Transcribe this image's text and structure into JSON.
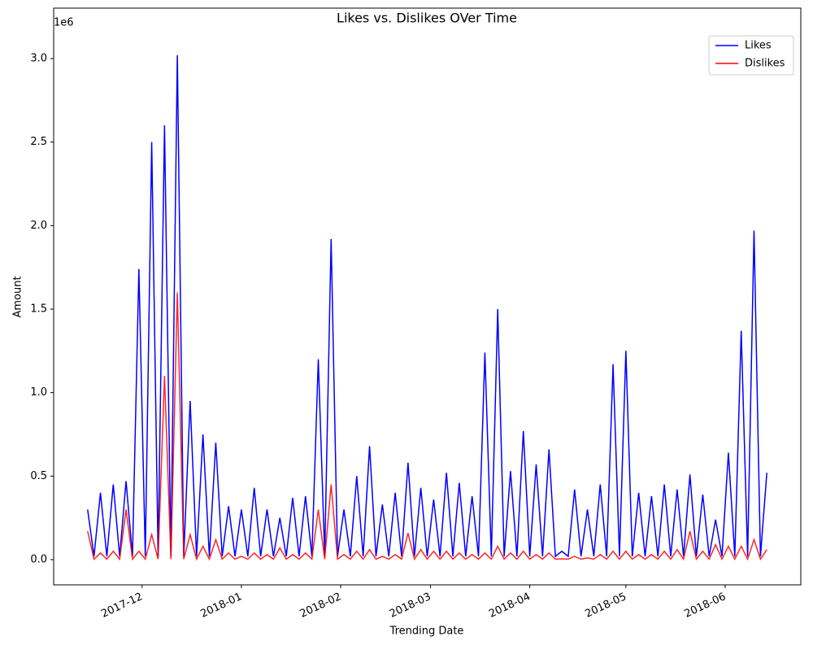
{
  "chart_data": {
    "type": "line",
    "title": "Likes vs. Dislikes OVer Time",
    "x_label": "Trending Date",
    "y_label": "Amount",
    "y_offset_label": "1e6",
    "legend": "upper right",
    "x": [
      17484,
      17486,
      17488,
      17490,
      17492,
      17494,
      17496,
      17498,
      17500,
      17502,
      17504,
      17506,
      17508,
      17510,
      17512,
      17514,
      17516,
      17518,
      17520,
      17522,
      17524,
      17526,
      17528,
      17530,
      17532,
      17534,
      17536,
      17538,
      17540,
      17542,
      17544,
      17546,
      17548,
      17550,
      17552,
      17554,
      17556,
      17558,
      17560,
      17562,
      17564,
      17566,
      17568,
      17570,
      17572,
      17574,
      17576,
      17578,
      17580,
      17582,
      17584,
      17586,
      17588,
      17590,
      17592,
      17594,
      17596,
      17598,
      17600,
      17602,
      17604,
      17606,
      17608,
      17610,
      17612,
      17614,
      17616,
      17618,
      17620,
      17622,
      17624,
      17626,
      17628,
      17630,
      17632,
      17634,
      17636,
      17638,
      17640,
      17642,
      17644,
      17646,
      17648,
      17650,
      17652,
      17654,
      17656,
      17658,
      17660,
      17662,
      17664,
      17666,
      17668,
      17670,
      17672,
      17674,
      17676,
      17678,
      17680,
      17682,
      17684,
      17686,
      17688,
      17690,
      17692,
      17694,
      17696
    ],
    "series": [
      {
        "name": "Likes",
        "color": "#0000ff",
        "values": [
          300000,
          20000,
          400000,
          20000,
          450000,
          20000,
          470000,
          20000,
          1740000,
          20000,
          2500000,
          20000,
          2600000,
          20000,
          3020000,
          20000,
          950000,
          20000,
          750000,
          20000,
          700000,
          20000,
          320000,
          20000,
          300000,
          20000,
          430000,
          20000,
          300000,
          20000,
          250000,
          20000,
          370000,
          20000,
          380000,
          20000,
          1200000,
          20000,
          1920000,
          20000,
          300000,
          20000,
          500000,
          20000,
          680000,
          20000,
          330000,
          20000,
          400000,
          20000,
          580000,
          20000,
          430000,
          20000,
          360000,
          20000,
          520000,
          20000,
          460000,
          20000,
          380000,
          20000,
          1240000,
          20000,
          1500000,
          20000,
          530000,
          20000,
          770000,
          20000,
          570000,
          20000,
          660000,
          20000,
          50000,
          20000,
          420000,
          20000,
          300000,
          20000,
          450000,
          20000,
          1170000,
          20000,
          1250000,
          20000,
          400000,
          20000,
          380000,
          20000,
          450000,
          20000,
          420000,
          20000,
          510000,
          20000,
          390000,
          20000,
          240000,
          20000,
          640000,
          20000,
          1370000,
          20000,
          1970000,
          20000,
          520000
        ]
      },
      {
        "name": "Dislikes",
        "color": "#ff0000",
        "values": [
          170000,
          3000,
          40000,
          3000,
          50000,
          3000,
          300000,
          3000,
          50000,
          3000,
          150000,
          3000,
          1100000,
          3000,
          1600000,
          3000,
          150000,
          3000,
          80000,
          3000,
          120000,
          3000,
          40000,
          3000,
          20000,
          3000,
          40000,
          3000,
          30000,
          3000,
          70000,
          3000,
          30000,
          3000,
          40000,
          3000,
          300000,
          3000,
          450000,
          3000,
          30000,
          3000,
          50000,
          3000,
          60000,
          3000,
          20000,
          3000,
          30000,
          3000,
          160000,
          3000,
          60000,
          3000,
          50000,
          3000,
          50000,
          3000,
          40000,
          3000,
          30000,
          3000,
          40000,
          3000,
          80000,
          3000,
          40000,
          3000,
          50000,
          3000,
          30000,
          3000,
          40000,
          3000,
          5000,
          3000,
          20000,
          3000,
          10000,
          3000,
          30000,
          3000,
          50000,
          3000,
          50000,
          3000,
          30000,
          3000,
          30000,
          3000,
          50000,
          3000,
          60000,
          3000,
          170000,
          3000,
          50000,
          3000,
          90000,
          3000,
          80000,
          3000,
          80000,
          3000,
          120000,
          3000,
          60000
        ]
      }
    ],
    "xlim": [
      17473.4,
      17706.6
    ],
    "xticks": [
      {
        "value": 17501,
        "label": "2017-12"
      },
      {
        "value": 17532,
        "label": "2018-01"
      },
      {
        "value": 17563,
        "label": "2018-02"
      },
      {
        "value": 17591,
        "label": "2018-03"
      },
      {
        "value": 17622,
        "label": "2018-04"
      },
      {
        "value": 17652,
        "label": "2018-05"
      },
      {
        "value": 17683,
        "label": "2018-06"
      }
    ],
    "ylim": [
      -151000,
      3302000
    ],
    "yticks": [
      {
        "value": 0,
        "label": "0.0"
      },
      {
        "value": 500000,
        "label": "0.5"
      },
      {
        "value": 1000000,
        "label": "1.0"
      },
      {
        "value": 1500000,
        "label": "1.5"
      },
      {
        "value": 2000000,
        "label": "2.0"
      },
      {
        "value": 2500000,
        "label": "2.5"
      },
      {
        "value": 3000000,
        "label": "3.0"
      }
    ]
  }
}
